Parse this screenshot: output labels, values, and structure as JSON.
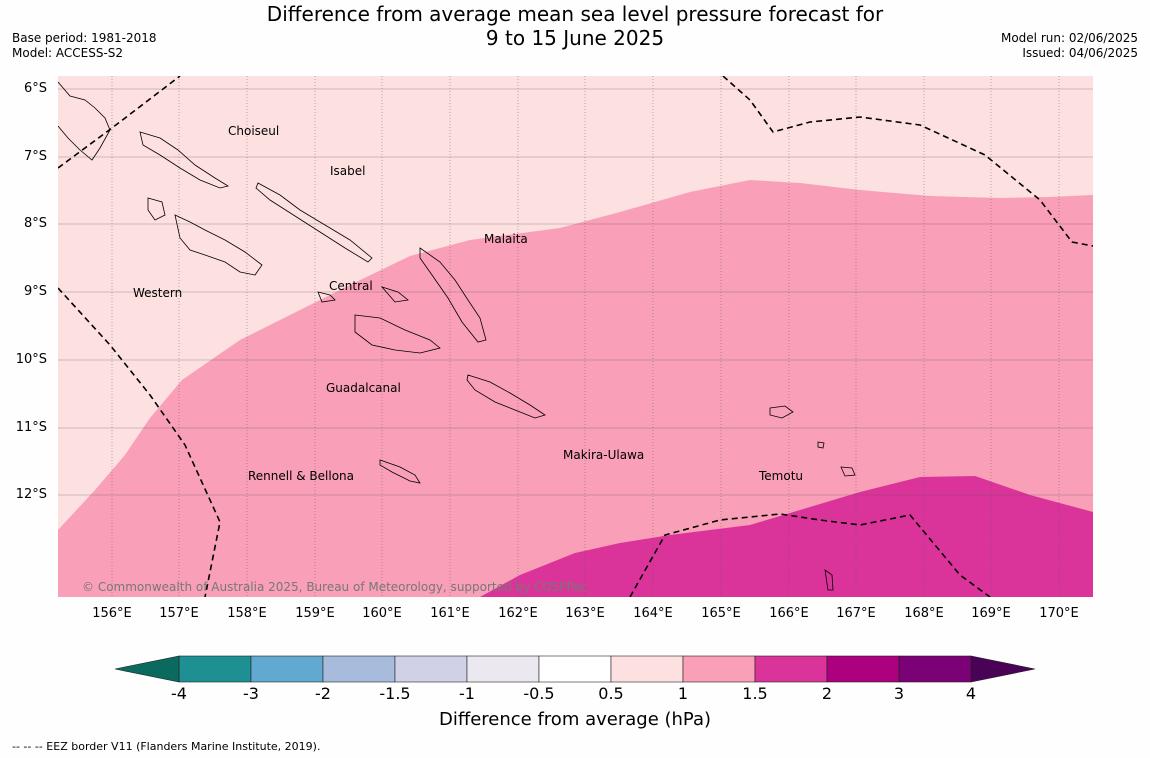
{
  "title_line1": "Difference from average mean sea level pressure forecast for",
  "title_line2": "9 to 15 June 2025",
  "base_period": "Base period: 1981-2018",
  "model": "Model: ACCESS-S2",
  "model_run": "Model run: 02/06/2025",
  "issued": "Issued: 04/06/2025",
  "latitude_labels": [
    "6°S",
    "7°S",
    "8°S",
    "9°S",
    "10°S",
    "11°S",
    "12°S"
  ],
  "longitude_labels": [
    "156°E",
    "157°E",
    "158°E",
    "159°E",
    "160°E",
    "161°E",
    "162°E",
    "163°E",
    "164°E",
    "165°E",
    "166°E",
    "167°E",
    "168°E",
    "169°E",
    "170°E"
  ],
  "regions": [
    "Choiseul",
    "Isabel",
    "Malaita",
    "Western",
    "Central",
    "Guadalcanal",
    "Makira-Ulawa",
    "Rennell & Bellona",
    "Temotu"
  ],
  "copyright": "© Commonwealth of Australia 2025, Bureau of Meteorology, supported by COSPPac",
  "colorbar": {
    "ticks": [
      "-4",
      "-3",
      "-2",
      "-1.5",
      "-1",
      "-0.5",
      "0.5",
      "1",
      "1.5",
      "2",
      "3",
      "4"
    ],
    "colors": [
      "#1e8f93",
      "#62a9d1",
      "#a7bcdc",
      "#d0d1e6",
      "#ece8f0",
      "#ffffff",
      "#fde0e0",
      "#f99fb8",
      "#da339a",
      "#ad007e",
      "#7a0176"
    ],
    "under_color": "#0b6a5e",
    "over_color": "#4a0257",
    "label": "Difference from average (hPa)"
  },
  "map_colors": {
    "band_0_5_to_1": "#fde0e0",
    "band_1_to_1_5": "#f99fb8",
    "band_1_5_to_2": "#da339a"
  },
  "eez_legend": "--  --  -- EEZ border V11 (Flanders Marine Institute, 2019)."
}
